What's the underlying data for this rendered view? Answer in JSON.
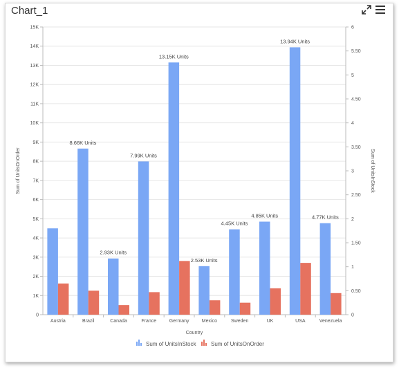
{
  "header": {
    "title": "Chart_1",
    "expand_icon": "expand-icon",
    "menu_icon": "hamburger-menu-icon"
  },
  "chart_data": {
    "type": "bar",
    "categories": [
      "Austria",
      "Brazil",
      "Canada",
      "France",
      "Germany",
      "Mexico",
      "Sweden",
      "UK",
      "USA",
      "Venezuela"
    ],
    "series": [
      {
        "name": "Sum of UnitsInStock",
        "axis": "left",
        "color": "#7aa7f5",
        "values": [
          4500,
          8660,
          2930,
          7990,
          13150,
          2530,
          4450,
          4850,
          13940,
          4770
        ],
        "labels": [
          "",
          "8.66K Units",
          "2.93K Units",
          "7.99K Units",
          "13.15K Units",
          "2.53K Units",
          "4.45K Units",
          "4.85K Units",
          "13.94K Units",
          "4.77K Units"
        ]
      },
      {
        "name": "Sum of UnitsOnOrder",
        "axis": "right",
        "color": "#e6725f",
        "values": [
          0.65,
          0.5,
          0.2,
          0.47,
          1.12,
          0.3,
          0.25,
          0.55,
          1.08,
          0.45
        ]
      }
    ],
    "xlabel": "Country",
    "ylabel": "Sum of UnitsOnOrder",
    "y2label": "Sum of UnitsInStock",
    "ylim": [
      0,
      15000
    ],
    "y2lim": [
      0,
      6
    ],
    "yticks": [
      "0",
      "1K",
      "2K",
      "3K",
      "4K",
      "5K",
      "6K",
      "7K",
      "8K",
      "9K",
      "10K",
      "11K",
      "12K",
      "13K",
      "14K",
      "15K"
    ],
    "y2ticks": [
      "0",
      "0.50",
      "1",
      "1.50",
      "2",
      "2.50",
      "3",
      "3.50",
      "4",
      "4.50",
      "5",
      "5.50",
      "6"
    ],
    "grid": true,
    "legend_position": "bottom-center"
  }
}
